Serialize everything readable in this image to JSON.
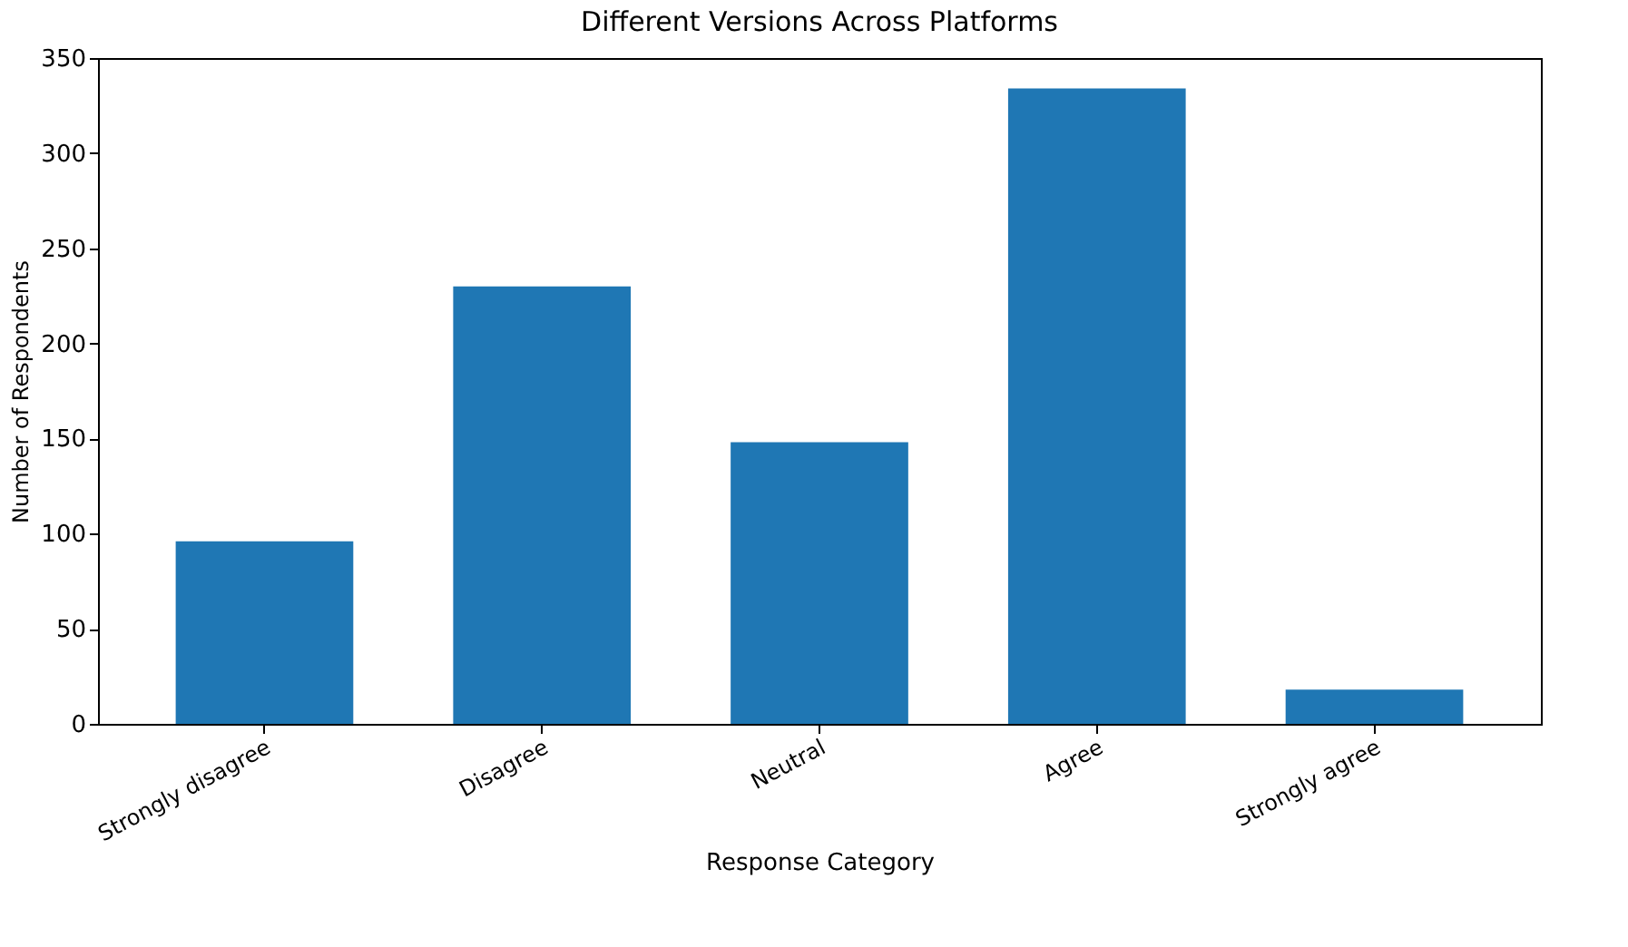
{
  "chart_data": {
    "type": "bar",
    "title": "Different Versions Across Platforms",
    "xlabel": "Response Category",
    "ylabel": "Number of Respondents",
    "categories": [
      "Strongly disagree",
      "Disagree",
      "Neutral",
      "Agree",
      "Strongly agree"
    ],
    "values": [
      96,
      230,
      148,
      334,
      18
    ],
    "color": "#1f77b4",
    "ylim": [
      0,
      350
    ],
    "yticks": [
      0,
      50,
      100,
      150,
      200,
      250,
      300,
      350
    ],
    "grid": false
  }
}
